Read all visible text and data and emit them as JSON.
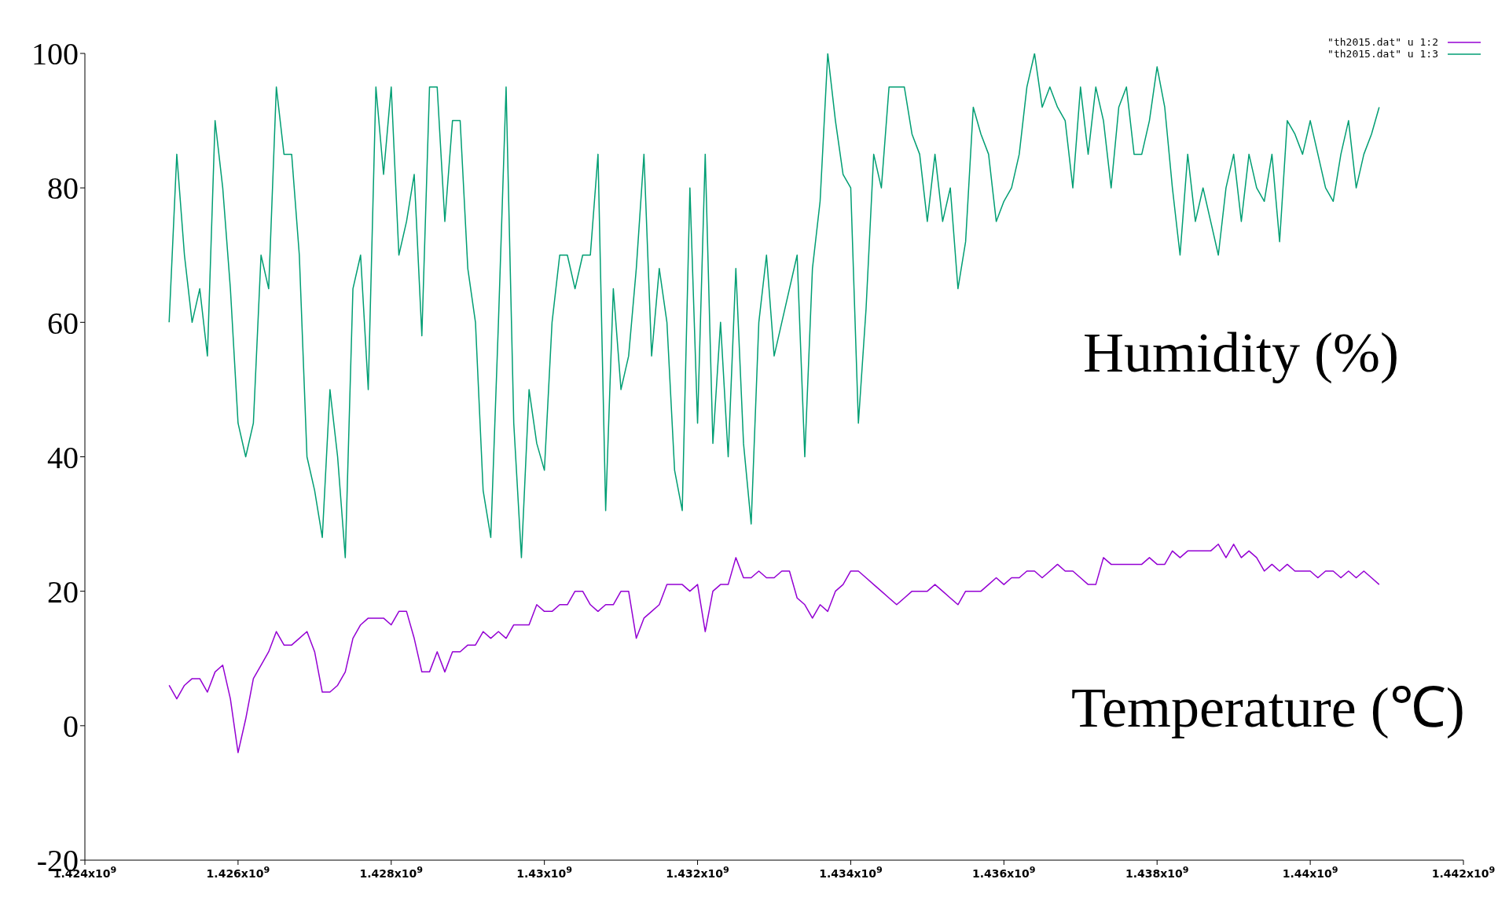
{
  "chart_data": {
    "type": "line",
    "marker": "none",
    "line_style": "solid",
    "legend": "top right",
    "xlim": [
      1424000000,
      1442000000
    ],
    "xticks": [
      {
        "value": 1424000000,
        "label": "1.424x10$^{9}$"
      },
      {
        "value": 1426000000,
        "label": "1.426x10$^{9}$"
      },
      {
        "value": 1428000000,
        "label": "1.428x10$^{9}$"
      },
      {
        "value": 1430000000,
        "label": "1.43x10$^{9}$"
      },
      {
        "value": 1432000000,
        "label": "1.432x10$^{9}$"
      },
      {
        "value": 1434000000,
        "label": "1.434x10$^{9}$"
      },
      {
        "value": 1436000000,
        "label": "1.436x10$^{9}$"
      },
      {
        "value": 1438000000,
        "label": "1.438x10$^{9}$"
      },
      {
        "value": 1440000000,
        "label": "1.44x10$^{9}$"
      },
      {
        "value": 1442000000,
        "label": "1.442x10$^{9}$"
      }
    ],
    "ylim": [
      -20,
      100
    ],
    "yticks": [
      -20,
      0,
      20,
      40,
      60,
      80,
      100
    ],
    "x": [
      1425100000,
      1425200000,
      1425300000,
      1425400000,
      1425500000,
      1425600000,
      1425700000,
      1425800000,
      1425900000,
      1426000000,
      1426100000,
      1426200000,
      1426300000,
      1426400000,
      1426500000,
      1426600000,
      1426700000,
      1426800000,
      1426900000,
      1427000000,
      1427100000,
      1427200000,
      1427300000,
      1427400000,
      1427500000,
      1427600000,
      1427700000,
      1427800000,
      1427900000,
      1428000000,
      1428100000,
      1428200000,
      1428300000,
      1428400000,
      1428500000,
      1428600000,
      1428700000,
      1428800000,
      1428900000,
      1429000000,
      1429100000,
      1429200000,
      1429300000,
      1429400000,
      1429500000,
      1429600000,
      1429700000,
      1429800000,
      1429900000,
      1430000000,
      1430100000,
      1430200000,
      1430300000,
      1430400000,
      1430500000,
      1430600000,
      1430700000,
      1430800000,
      1430900000,
      1431000000,
      1431100000,
      1431200000,
      1431300000,
      1431400000,
      1431500000,
      1431600000,
      1431700000,
      1431800000,
      1431900000,
      1432000000,
      1432100000,
      1432200000,
      1432300000,
      1432400000,
      1432500000,
      1432600000,
      1432700000,
      1432800000,
      1432900000,
      1433000000,
      1433100000,
      1433200000,
      1433300000,
      1433400000,
      1433500000,
      1433600000,
      1433700000,
      1433800000,
      1433900000,
      1434000000,
      1434100000,
      1434200000,
      1434300000,
      1434400000,
      1434500000,
      1434600000,
      1434700000,
      1434800000,
      1434900000,
      1435000000,
      1435100000,
      1435200000,
      1435300000,
      1435400000,
      1435500000,
      1435600000,
      1435700000,
      1435800000,
      1435900000,
      1436000000,
      1436100000,
      1436200000,
      1436300000,
      1436400000,
      1436500000,
      1436600000,
      1436700000,
      1436800000,
      1436900000,
      1437000000,
      1437100000,
      1437200000,
      1437300000,
      1437400000,
      1437500000,
      1437600000,
      1437700000,
      1437800000,
      1437900000,
      1438000000,
      1438100000,
      1438200000,
      1438300000,
      1438400000,
      1438500000,
      1438600000,
      1438700000,
      1438800000,
      1438900000,
      1439000000,
      1439100000,
      1439200000,
      1439300000,
      1439400000,
      1439500000,
      1439600000,
      1439700000,
      1439800000,
      1439900000,
      1440000000,
      1440100000,
      1440200000,
      1440300000,
      1440400000,
      1440500000,
      1440600000,
      1440700000,
      1440800000,
      1440900000
    ],
    "series": [
      {
        "name": "\"th2015.dat\" u 1:2",
        "color": "#9400d3",
        "values": [
          6,
          4,
          6,
          7,
          7,
          5,
          8,
          9,
          4,
          -4,
          1,
          7,
          9,
          11,
          14,
          12,
          12,
          13,
          14,
          11,
          5,
          5,
          6,
          8,
          13,
          15,
          16,
          16,
          16,
          15,
          17,
          17,
          13,
          8,
          8,
          11,
          8,
          11,
          11,
          12,
          12,
          14,
          13,
          14,
          13,
          15,
          15,
          15,
          18,
          17,
          17,
          18,
          18,
          20,
          20,
          18,
          17,
          18,
          18,
          20,
          20,
          13,
          16,
          17,
          18,
          21,
          21,
          21,
          20,
          21,
          14,
          20,
          21,
          21,
          25,
          22,
          22,
          23,
          22,
          22,
          23,
          23,
          19,
          18,
          16,
          18,
          17,
          20,
          21,
          23,
          23,
          22,
          21,
          20,
          19,
          18,
          19,
          20,
          20,
          20,
          21,
          20,
          19,
          18,
          20,
          20,
          20,
          21,
          22,
          21,
          22,
          22,
          23,
          23,
          22,
          23,
          24,
          23,
          23,
          22,
          21,
          21,
          25,
          24,
          24,
          24,
          24,
          24,
          25,
          24,
          24,
          26,
          25,
          26,
          26,
          26,
          26,
          27,
          25,
          27,
          25,
          26,
          25,
          23,
          24,
          23,
          24,
          23,
          23,
          23,
          22,
          23,
          23,
          22,
          23,
          22,
          23,
          22,
          21
        ]
      },
      {
        "name": "\"th2015.dat\" u 1:3",
        "color": "#009e73",
        "values": [
          60,
          85,
          70,
          60,
          65,
          55,
          90,
          80,
          65,
          45,
          40,
          45,
          70,
          65,
          95,
          85,
          85,
          70,
          40,
          35,
          28,
          50,
          40,
          25,
          65,
          70,
          50,
          95,
          82,
          95,
          70,
          75,
          82,
          58,
          95,
          95,
          75,
          90,
          90,
          68,
          60,
          35,
          28,
          60,
          95,
          45,
          25,
          50,
          42,
          38,
          60,
          70,
          70,
          65,
          70,
          70,
          85,
          32,
          65,
          50,
          55,
          68,
          85,
          55,
          68,
          60,
          38,
          32,
          80,
          45,
          85,
          42,
          60,
          40,
          68,
          42,
          30,
          60,
          70,
          55,
          60,
          65,
          70,
          40,
          68,
          78,
          100,
          90,
          82,
          80,
          45,
          62,
          85,
          80,
          95,
          95,
          95,
          88,
          85,
          75,
          85,
          75,
          80,
          65,
          72,
          92,
          88,
          85,
          75,
          78,
          80,
          85,
          95,
          100,
          92,
          95,
          92,
          90,
          80,
          95,
          85,
          95,
          90,
          80,
          92,
          95,
          85,
          85,
          90,
          98,
          92,
          80,
          70,
          85,
          75,
          80,
          75,
          70,
          80,
          85,
          75,
          85,
          80,
          78,
          85,
          72,
          90,
          88,
          85,
          90,
          85,
          80,
          78,
          85,
          90,
          80,
          85,
          88,
          92
        ]
      }
    ],
    "annotations": [
      "Humidity (%)",
      "Temperature (℃)"
    ]
  }
}
